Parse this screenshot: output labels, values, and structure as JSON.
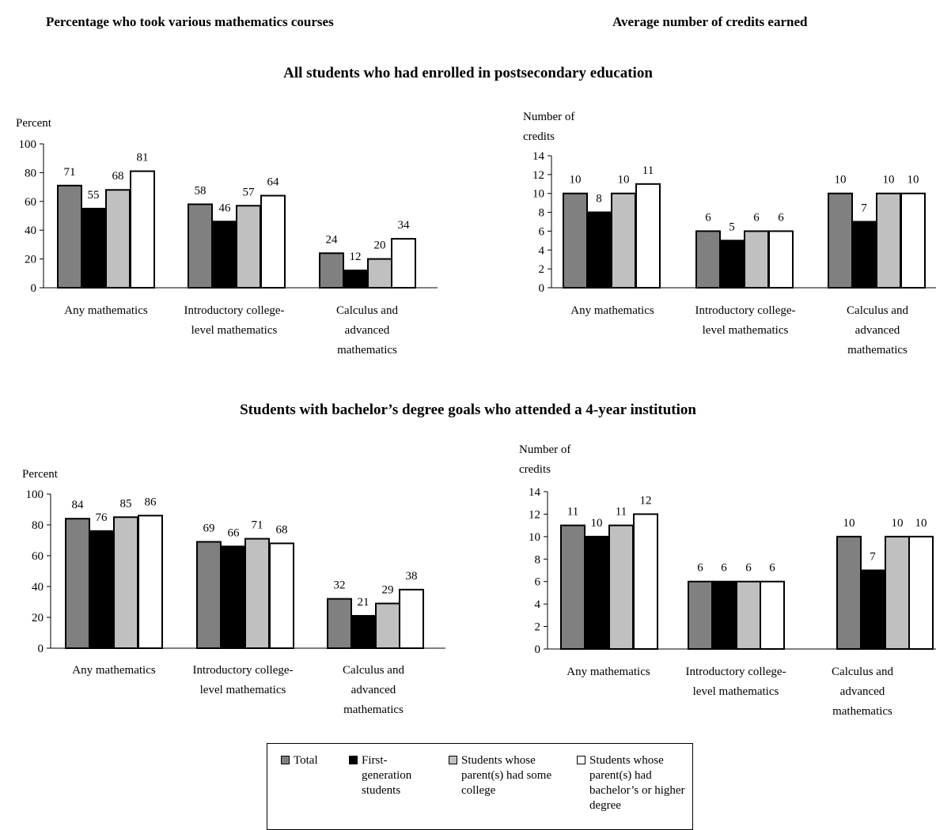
{
  "headers": {
    "left": "Percentage who took various mathematics courses",
    "right": "Average number of credits earned"
  },
  "sections": {
    "top": "All students who had enrolled in postsecondary education",
    "bottom": "Students with bachelor’s degree goals who attended a 4-year institution"
  },
  "legend": {
    "items": [
      {
        "label": "Total",
        "color": "#808080"
      },
      {
        "label": "First-generation students",
        "color": "#000000"
      },
      {
        "label": "Students whose parent(s) had some college",
        "color": "#c0c0c0"
      },
      {
        "label": "Students whose parent(s) had bachelor’s or higher degree",
        "color": "#ffffff"
      }
    ]
  },
  "chart_data": [
    {
      "type": "bar",
      "ylabel": "Percent",
      "ylim": [
        0,
        100
      ],
      "yticks": [
        0,
        20,
        40,
        60,
        80,
        100
      ],
      "categories": [
        "Any mathematics",
        "Introductory college-level mathematics",
        "Calculus and advanced mathematics"
      ],
      "category_lines": [
        [
          "Any mathematics"
        ],
        [
          "Introductory college-",
          "level mathematics"
        ],
        [
          "Calculus and",
          "advanced",
          "mathematics"
        ]
      ],
      "series": [
        {
          "name": "Total",
          "values": [
            71,
            58,
            24
          ]
        },
        {
          "name": "First-generation students",
          "values": [
            55,
            46,
            12
          ]
        },
        {
          "name": "Students whose parent(s) had some college",
          "values": [
            68,
            57,
            20
          ]
        },
        {
          "name": "Students whose parent(s) had bachelor’s or higher degree",
          "values": [
            81,
            64,
            34
          ]
        }
      ]
    },
    {
      "type": "bar",
      "ylabel": "Number of credits",
      "ylabel_lines": [
        "Number of",
        "credits"
      ],
      "ylim": [
        0,
        14
      ],
      "yticks": [
        0,
        2,
        4,
        6,
        8,
        10,
        12,
        14
      ],
      "categories": [
        "Any mathematics",
        "Introductory college-level mathematics",
        "Calculus and advanced mathematics"
      ],
      "category_lines": [
        [
          "Any mathematics"
        ],
        [
          "Introductory college-",
          "level mathematics"
        ],
        [
          "Calculus and",
          "advanced",
          "mathematics"
        ]
      ],
      "series": [
        {
          "name": "Total",
          "values": [
            10,
            6,
            10
          ]
        },
        {
          "name": "First-generation students",
          "values": [
            8,
            5,
            7
          ]
        },
        {
          "name": "Students whose parent(s) had some college",
          "values": [
            10,
            6,
            10
          ]
        },
        {
          "name": "Students whose parent(s) had bachelor’s or higher degree",
          "values": [
            11,
            6,
            10
          ]
        }
      ]
    },
    {
      "type": "bar",
      "ylabel": "Percent",
      "ylim": [
        0,
        100
      ],
      "yticks": [
        0,
        20,
        40,
        60,
        80,
        100
      ],
      "categories": [
        "Any mathematics",
        "Introductory college-level mathematics",
        "Calculus and advanced mathematics"
      ],
      "category_lines": [
        [
          "Any mathematics"
        ],
        [
          "Introductory college-",
          "level mathematics"
        ],
        [
          "Calculus and",
          "advanced",
          "mathematics"
        ]
      ],
      "series": [
        {
          "name": "Total",
          "values": [
            84,
            69,
            32
          ]
        },
        {
          "name": "First-generation students",
          "values": [
            76,
            66,
            21
          ]
        },
        {
          "name": "Students whose parent(s) had some college",
          "values": [
            85,
            71,
            29
          ]
        },
        {
          "name": "Students whose parent(s) had bachelor’s or higher degree",
          "values": [
            86,
            68,
            38
          ]
        }
      ]
    },
    {
      "type": "bar",
      "ylabel": "Number of credits",
      "ylabel_lines": [
        "Number of",
        "credits"
      ],
      "ylim": [
        0,
        14
      ],
      "yticks": [
        0,
        2,
        4,
        6,
        8,
        10,
        12,
        14
      ],
      "categories": [
        "Any mathematics",
        "Introductory college-level mathematics",
        "Calculus and advanced mathematics"
      ],
      "category_lines": [
        [
          "Any mathematics"
        ],
        [
          "Introductory college-",
          "level mathematics"
        ],
        [
          "Calculus and",
          "advanced",
          "mathematics"
        ]
      ],
      "series": [
        {
          "name": "Total",
          "values": [
            11,
            6,
            10
          ]
        },
        {
          "name": "First-generation students",
          "values": [
            10,
            6,
            7
          ]
        },
        {
          "name": "Students whose parent(s) had some college",
          "values": [
            11,
            6,
            10
          ]
        },
        {
          "name": "Students whose parent(s) had bachelor’s or higher degree",
          "values": [
            12,
            6,
            10
          ]
        }
      ]
    }
  ]
}
